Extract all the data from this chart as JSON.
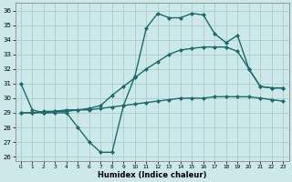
{
  "title": "",
  "xlabel": "Humidex (Indice chaleur)",
  "background_color": "#cce8e8",
  "grid_color": "#aacccc",
  "line_color": "#1a6b6b",
  "xlim": [
    -0.5,
    23.5
  ],
  "ylim": [
    25.7,
    36.5
  ],
  "yticks": [
    26,
    27,
    28,
    29,
    30,
    31,
    32,
    33,
    34,
    35,
    36
  ],
  "xticks": [
    0,
    1,
    2,
    3,
    4,
    5,
    6,
    7,
    8,
    9,
    10,
    11,
    12,
    13,
    14,
    15,
    16,
    17,
    18,
    19,
    20,
    21,
    22,
    23
  ],
  "lines": [
    {
      "x": [
        0,
        1,
        2,
        3,
        4,
        5,
        6,
        7,
        8,
        9,
        10,
        11,
        12,
        13,
        14,
        15,
        16,
        17,
        18,
        19,
        20,
        21,
        22,
        23
      ],
      "y": [
        29.0,
        29.0,
        29.0,
        29.1,
        29.1,
        29.2,
        29.2,
        29.3,
        29.4,
        29.5,
        29.6,
        29.7,
        29.8,
        29.9,
        30.0,
        30.0,
        30.0,
        30.1,
        30.1,
        30.1,
        30.1,
        30.0,
        29.9,
        29.8
      ],
      "marker": "D",
      "markersize": 2.0,
      "linewidth": 1.0
    },
    {
      "x": [
        0,
        1,
        2,
        3,
        4,
        5,
        6,
        7,
        8,
        9,
        10,
        11,
        12,
        13,
        14,
        15,
        16,
        17,
        18,
        19,
        20,
        21,
        22,
        23
      ],
      "y": [
        29.0,
        29.0,
        29.1,
        29.1,
        29.2,
        29.2,
        29.3,
        29.5,
        30.2,
        30.8,
        31.4,
        32.0,
        32.5,
        33.0,
        33.3,
        33.4,
        33.5,
        33.5,
        33.5,
        33.2,
        32.0,
        30.8,
        30.7,
        30.7
      ],
      "marker": "D",
      "markersize": 2.0,
      "linewidth": 1.0
    },
    {
      "x": [
        0,
        1,
        2,
        3,
        4,
        5,
        6,
        7,
        8,
        9,
        10,
        11,
        12,
        13,
        14,
        15,
        16,
        17,
        18,
        19,
        20,
        21,
        22,
        23
      ],
      "y": [
        31.0,
        29.2,
        29.0,
        29.0,
        29.0,
        28.0,
        27.0,
        26.3,
        26.3,
        29.5,
        31.5,
        34.8,
        35.8,
        35.5,
        35.5,
        35.8,
        35.7,
        34.4,
        33.8,
        34.3,
        32.0,
        30.8,
        30.7,
        30.7
      ],
      "marker": "D",
      "markersize": 2.0,
      "linewidth": 1.0
    }
  ]
}
